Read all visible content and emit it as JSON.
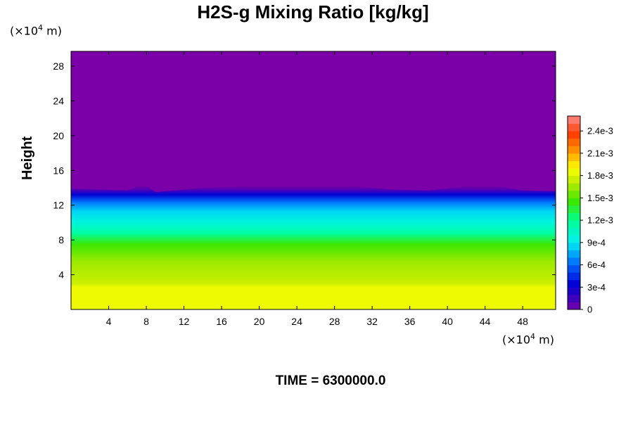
{
  "title": "H2S-g Mixing Ratio [kg/kg]",
  "x_unit": "(×10",
  "x_unit_exp": "4",
  "x_unit_tail": " m)",
  "y_unit": "(×10",
  "y_unit_exp": "4",
  "y_unit_tail": " m)",
  "ylabel": "Height",
  "time_label": "TIME = 6300000.0",
  "chart_data": {
    "type": "heatmap",
    "title": "H2S-g Mixing Ratio [kg/kg]",
    "ylabel": "Height",
    "xlim": [
      0,
      51.5
    ],
    "ylim": [
      0,
      29.7
    ],
    "x_ticks": [
      4,
      8,
      12,
      16,
      20,
      24,
      28,
      32,
      36,
      40,
      44,
      48
    ],
    "y_ticks": [
      4,
      8,
      12,
      16,
      20,
      24,
      28
    ],
    "colorbar": {
      "min": 0,
      "max": 0.0026,
      "tick_values": [
        0,
        0.0003,
        0.0006,
        0.0009,
        0.0012,
        0.0015,
        0.0018,
        0.0021,
        0.0024
      ],
      "tick_labels": [
        "0",
        "3e-4",
        "6e-4",
        "9e-4",
        "1.2e-3",
        "1.5e-3",
        "1.8e-3",
        "2.1e-3",
        "2.4e-3"
      ]
    },
    "vertical_profile": [
      {
        "height": 0,
        "value": 0.00185
      },
      {
        "height": 2.6,
        "value": 0.00185
      },
      {
        "height": 3.0,
        "value": 0.00175
      },
      {
        "height": 5.5,
        "value": 0.00165
      },
      {
        "height": 7.5,
        "value": 0.00145
      },
      {
        "height": 8.8,
        "value": 0.00115
      },
      {
        "height": 10.2,
        "value": 0.00095
      },
      {
        "height": 11.3,
        "value": 0.00085
      },
      {
        "height": 12.3,
        "value": 0.00065
      },
      {
        "height": 13.2,
        "value": 0.00035
      },
      {
        "height": 13.8,
        "value": 0.0001
      },
      {
        "height": 14.2,
        "value": 0.0
      },
      {
        "height": 29.7,
        "value": 0.0
      }
    ],
    "top_boundary_height": [
      {
        "x": 0,
        "height": 13.9
      },
      {
        "x": 6,
        "height": 13.7
      },
      {
        "x": 7.8,
        "height": 14.4
      },
      {
        "x": 9,
        "height": 13.5
      },
      {
        "x": 14,
        "height": 14.0
      },
      {
        "x": 22,
        "height": 14.3
      },
      {
        "x": 28,
        "height": 14.4
      },
      {
        "x": 34,
        "height": 13.8
      },
      {
        "x": 38,
        "height": 13.7
      },
      {
        "x": 44,
        "height": 14.4
      },
      {
        "x": 48,
        "height": 13.7
      },
      {
        "x": 51.5,
        "height": 13.6
      }
    ]
  }
}
